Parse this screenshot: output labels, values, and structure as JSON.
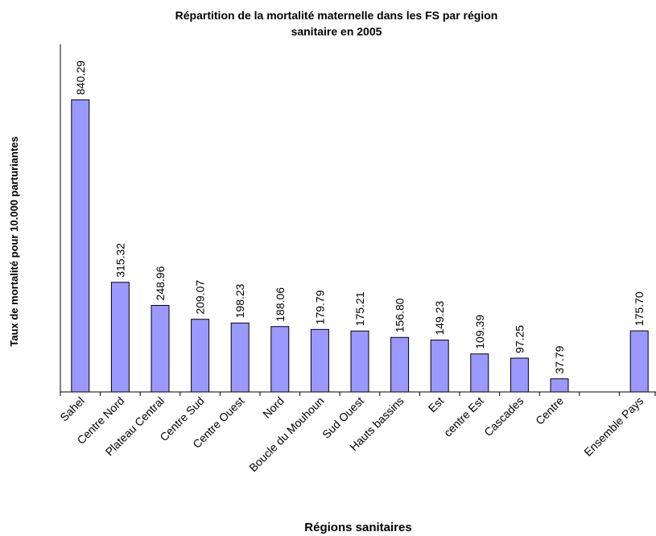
{
  "chart_data": {
    "type": "bar",
    "title": "Répartition de la mortalité maternelle dans les FS par région sanitaire en 2005",
    "x_label": "Régions sanitaires",
    "y_label": "Taux de mortalité pour 10.000 parturiantes",
    "categories": [
      "Sahel",
      "Centre Nord",
      "Plateau Central",
      "Centre Sud",
      "Centre Ouest",
      "Nord",
      "Boucle du Mouhoun",
      "Sud Ouest",
      "Hauts bassins",
      "Est",
      "centre Est",
      "Cascades",
      "Centre",
      null,
      "Ensemble Pays"
    ],
    "values": [
      840.29,
      315.32,
      248.96,
      209.07,
      198.23,
      188.06,
      179.79,
      175.21,
      156.8,
      149.23,
      109.39,
      97.25,
      37.79,
      null,
      175.7
    ],
    "value_labels": [
      "840.29",
      "315.32",
      "248.96",
      "209.07",
      "198.23",
      "188.06",
      "179.79",
      "175.21",
      "156.80",
      "149.23",
      "109.39",
      "97.25",
      "37.79",
      null,
      "175.70"
    ],
    "color": "#9999ff",
    "ylim": [
      0,
      1000
    ]
  }
}
